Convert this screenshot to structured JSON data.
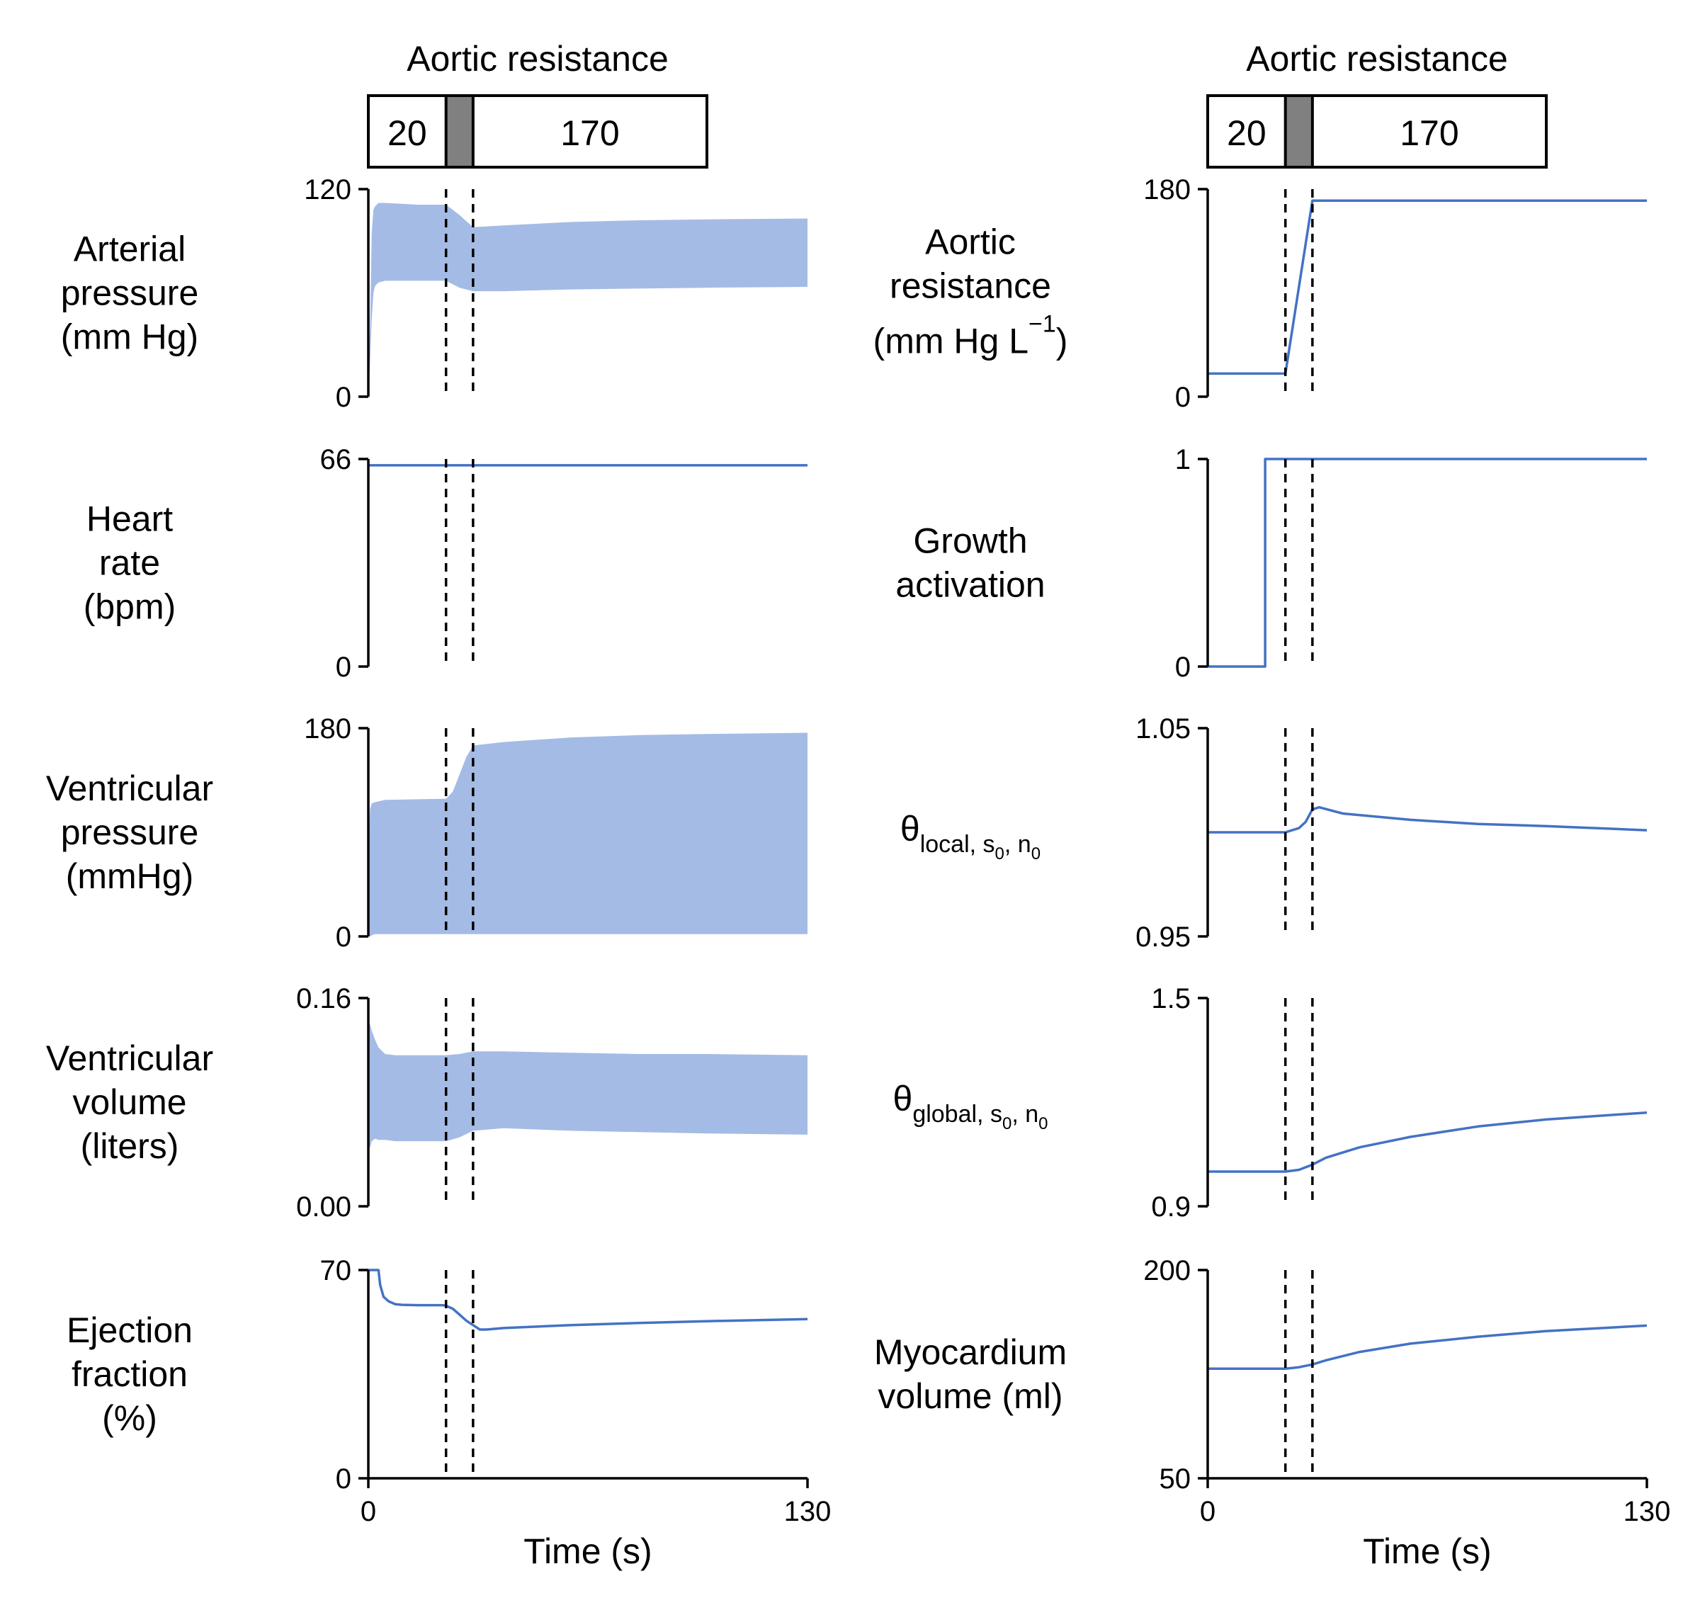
{
  "figure": {
    "series_color": "#4472c4",
    "band_color": "#a4bbe6",
    "transition_color": "#808080"
  },
  "resistance_bar": {
    "title": "Aortic resistance",
    "low_label": "20",
    "high_label": "170",
    "transition_start_s": 23,
    "transition_end_s": 31
  },
  "chart_data": [
    {
      "type": "area",
      "panel": "left-1",
      "xlabel": "",
      "ylabel": "Arterial pressure (mm Hg)",
      "xlim": [
        0,
        130
      ],
      "ylim": [
        0,
        120
      ],
      "yticks": [
        "0",
        "120"
      ],
      "vlines": [
        23,
        31
      ],
      "band": {
        "t": [
          0,
          0.5,
          1,
          1.5,
          2,
          3,
          5,
          10,
          15,
          23,
          27,
          31,
          40,
          60,
          80,
          100,
          130
        ],
        "upper": [
          0,
          40,
          95,
          108,
          110,
          112,
          112,
          111.5,
          111,
          111,
          105,
          98,
          99,
          101,
          102,
          102.5,
          103
        ],
        "lower": [
          0,
          20,
          45,
          60,
          64,
          66,
          67,
          67,
          67,
          67,
          63,
          61,
          61,
          62,
          62.5,
          63,
          63.5
        ]
      }
    },
    {
      "type": "line",
      "panel": "left-2",
      "xlabel": "",
      "ylabel": "Heart rate (bpm)",
      "xlim": [
        0,
        130
      ],
      "ylim": [
        0,
        66
      ],
      "yticks": [
        "0",
        "66"
      ],
      "vlines": [
        23,
        31
      ],
      "x": [
        0,
        130
      ],
      "y": [
        64,
        64
      ]
    },
    {
      "type": "area",
      "panel": "left-3",
      "xlabel": "",
      "ylabel": "Ventricular pressure (mmHg)",
      "xlim": [
        0,
        130
      ],
      "ylim": [
        0,
        180
      ],
      "yticks": [
        "0",
        "180"
      ],
      "vlines": [
        23,
        31
      ],
      "band": {
        "t": [
          0,
          0.5,
          1,
          2,
          5,
          23,
          25,
          27,
          29,
          31,
          40,
          60,
          80,
          100,
          130
        ],
        "upper": [
          70,
          110,
          115,
          116,
          118,
          119,
          125,
          140,
          155,
          165,
          168,
          172,
          174,
          175,
          176
        ],
        "lower": [
          0,
          0,
          1,
          2,
          2,
          2,
          2,
          2,
          2,
          2,
          2,
          2,
          2,
          2,
          2
        ]
      }
    },
    {
      "type": "area",
      "panel": "left-4",
      "xlabel": "",
      "ylabel": "Ventricular volume (liters)",
      "xlim": [
        0,
        130
      ],
      "ylim": [
        0.0,
        0.16
      ],
      "yticks": [
        "0.00",
        "0.16"
      ],
      "vlines": [
        23,
        31
      ],
      "band": {
        "t": [
          0,
          0.5,
          1,
          2,
          3,
          5,
          8,
          23,
          27,
          31,
          40,
          60,
          80,
          100,
          130
        ],
        "upper": [
          0.14,
          0.14,
          0.135,
          0.128,
          0.122,
          0.117,
          0.116,
          0.116,
          0.117,
          0.119,
          0.119,
          0.118,
          0.117,
          0.117,
          0.116
        ],
        "lower": [
          0.045,
          0.045,
          0.05,
          0.052,
          0.051,
          0.051,
          0.05,
          0.05,
          0.053,
          0.058,
          0.06,
          0.058,
          0.057,
          0.056,
          0.055
        ]
      }
    },
    {
      "type": "line",
      "panel": "left-5",
      "xlabel": "Time (s)",
      "ylabel": "Ejection fraction (%)",
      "xlim": [
        0,
        130
      ],
      "ylim": [
        0,
        70
      ],
      "yticks": [
        "0",
        "70"
      ],
      "xticks": [
        "0",
        "130"
      ],
      "vlines": [
        23,
        31
      ],
      "x": [
        0,
        3,
        3.5,
        4.5,
        6,
        8,
        10,
        15,
        22,
        23,
        25,
        27,
        29,
        31,
        33,
        35,
        40,
        60,
        80,
        100,
        130
      ],
      "y": [
        70,
        70,
        65,
        61,
        59.5,
        58.5,
        58.3,
        58.2,
        58.2,
        58,
        57,
        55,
        53,
        51.5,
        50,
        50,
        50.5,
        51.5,
        52.2,
        52.8,
        53.5
      ]
    },
    {
      "type": "line",
      "panel": "right-1",
      "xlabel": "",
      "ylabel": "Aortic resistance (mm Hg L⁻¹)",
      "xlim": [
        0,
        130
      ],
      "ylim": [
        0,
        180
      ],
      "yticks": [
        "0",
        "180"
      ],
      "vlines": [
        23,
        31
      ],
      "x": [
        0,
        23,
        31,
        130
      ],
      "y": [
        20,
        20,
        170,
        170
      ]
    },
    {
      "type": "line",
      "panel": "right-2",
      "xlabel": "",
      "ylabel": "Growth activation",
      "xlim": [
        0,
        130
      ],
      "ylim": [
        0,
        1
      ],
      "yticks": [
        "0",
        "1"
      ],
      "vlines": [
        23,
        31
      ],
      "x": [
        0,
        17,
        17,
        130
      ],
      "y": [
        0,
        0,
        1,
        1
      ]
    },
    {
      "type": "line",
      "panel": "right-3",
      "xlabel": "",
      "ylabel": "θlocal, s0, n0",
      "xlim": [
        0,
        130
      ],
      "ylim": [
        0.95,
        1.05
      ],
      "yticks": [
        "0.95",
        "1.05"
      ],
      "vlines": [
        23,
        31
      ],
      "x": [
        0,
        23,
        25,
        27,
        29,
        31,
        33,
        40,
        60,
        80,
        100,
        130
      ],
      "y": [
        1.0,
        1.0,
        1.001,
        1.002,
        1.005,
        1.011,
        1.012,
        1.009,
        1.006,
        1.004,
        1.003,
        1.001
      ]
    },
    {
      "type": "line",
      "panel": "right-4",
      "xlabel": "",
      "ylabel": "θglobal, s0, n0",
      "xlim": [
        0,
        130
      ],
      "ylim": [
        0.9,
        1.5
      ],
      "yticks": [
        "0.9",
        "1.5"
      ],
      "vlines": [
        23,
        31
      ],
      "x": [
        0,
        23,
        27,
        31,
        35,
        45,
        60,
        80,
        100,
        130
      ],
      "y": [
        1.0,
        1.0,
        1.005,
        1.02,
        1.04,
        1.07,
        1.1,
        1.13,
        1.15,
        1.17
      ]
    },
    {
      "type": "line",
      "panel": "right-5",
      "xlabel": "Time (s)",
      "ylabel": "Myocardium volume (ml)",
      "xlim": [
        0,
        130
      ],
      "ylim": [
        50,
        200
      ],
      "yticks": [
        "50",
        "200"
      ],
      "xticks": [
        "0",
        "130"
      ],
      "vlines": [
        23,
        31
      ],
      "x": [
        0,
        23,
        27,
        31,
        35,
        45,
        60,
        80,
        100,
        130
      ],
      "y": [
        129,
        129,
        130,
        132,
        135,
        141,
        147,
        152,
        156,
        160
      ]
    }
  ]
}
